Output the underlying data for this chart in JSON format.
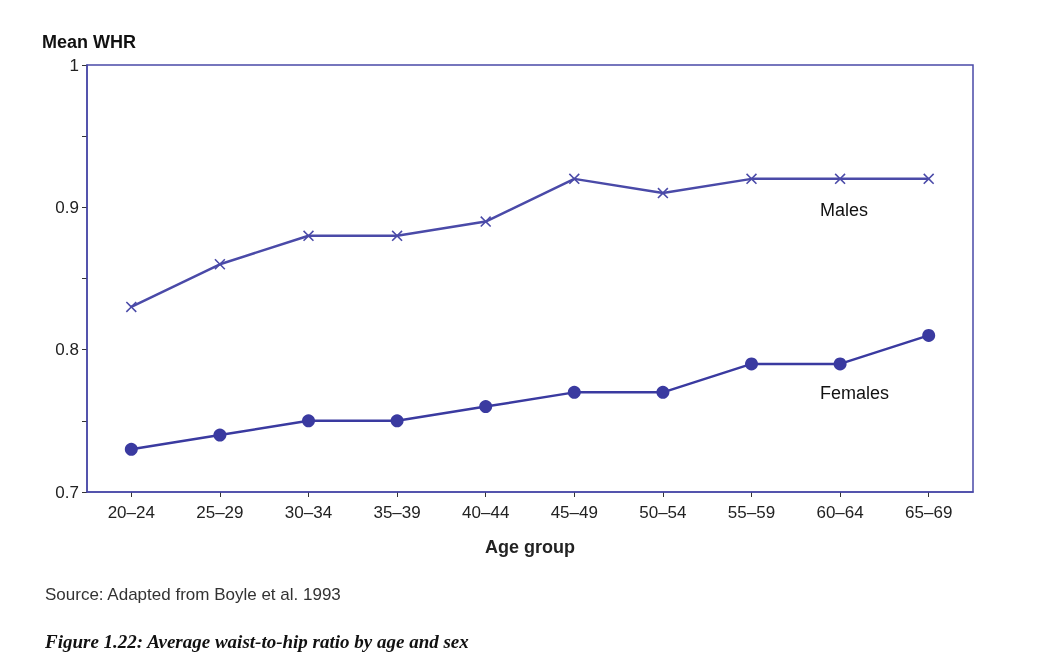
{
  "chart_data": {
    "type": "line",
    "title": "Figure 1.22: Average waist-to-hip ratio by age and sex",
    "ylabel": "Mean WHR",
    "xlabel": "Age group",
    "annotations": [
      "Source: Adapted from Boyle et al. 1993"
    ],
    "categories": [
      "20–24",
      "25–29",
      "30–34",
      "35–39",
      "40–44",
      "45–49",
      "50–54",
      "55–59",
      "60–64",
      "65–69"
    ],
    "series": [
      {
        "name": "Males",
        "color": "#4a4aa8",
        "marker": "cross",
        "values": [
          0.83,
          0.86,
          0.88,
          0.88,
          0.89,
          0.92,
          0.91,
          0.92,
          0.92,
          0.92
        ]
      },
      {
        "name": "Females",
        "color": "#3a3aa0",
        "marker": "circle",
        "values": [
          0.73,
          0.74,
          0.75,
          0.75,
          0.76,
          0.77,
          0.77,
          0.79,
          0.79,
          0.81
        ]
      }
    ],
    "ylim": [
      0.7,
      1
    ],
    "yticks": [
      0.7,
      {
        "value": 0.75,
        "label": null
      },
      0.8,
      {
        "value": 0.85,
        "label": null
      },
      0.9,
      {
        "value": 0.95,
        "label": null
      },
      {
        "value": 1,
        "label": "1"
      }
    ],
    "grid": false,
    "legend": false,
    "line_style": "solid"
  }
}
